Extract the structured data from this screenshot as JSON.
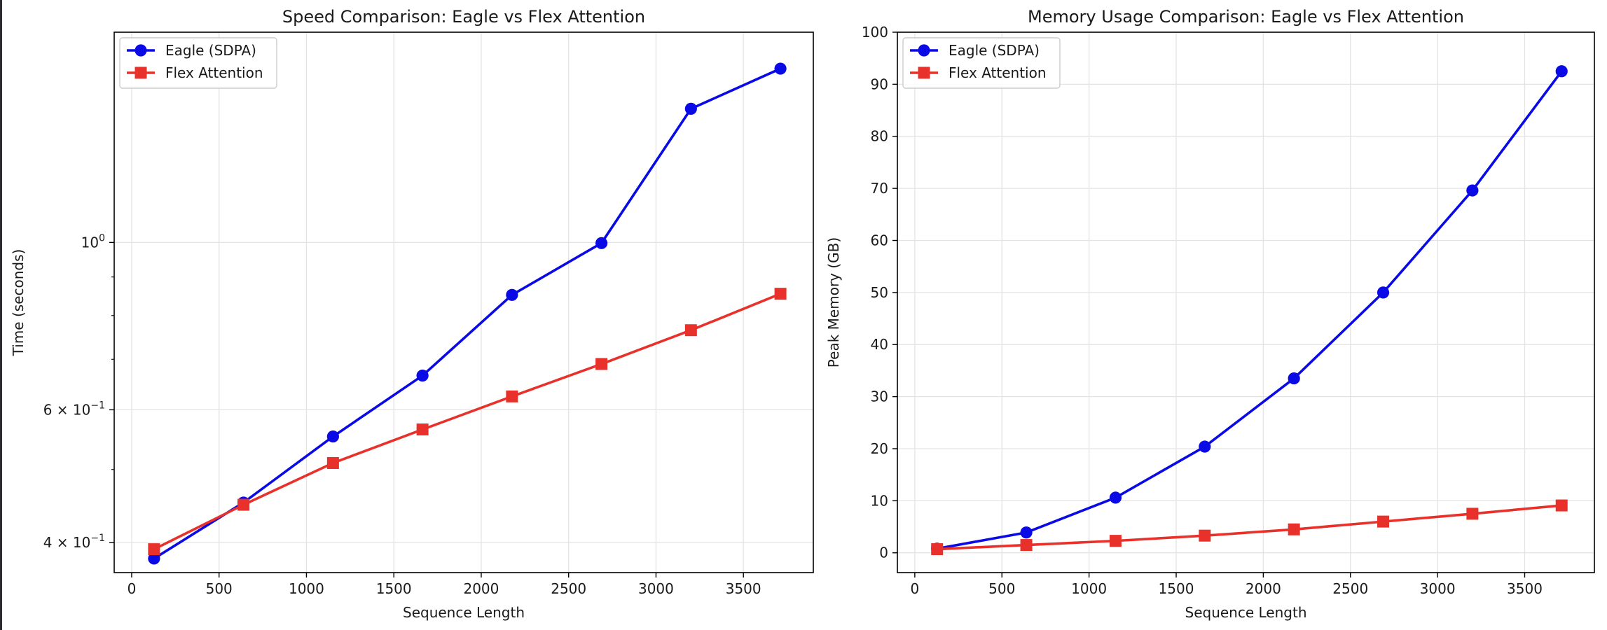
{
  "chart_data": [
    {
      "type": "line",
      "title": "Speed Comparison: Eagle vs Flex Attention",
      "xlabel": "Sequence Length",
      "ylabel": "Time (seconds)",
      "yscale": "log",
      "xlim": [
        -100,
        3900
      ],
      "ylim": [
        0.365,
        1.9
      ],
      "grid": true,
      "legend_position": "top-left",
      "x": [
        128,
        640,
        1152,
        1664,
        2176,
        2688,
        3200,
        3712
      ],
      "x_ticks": [
        0,
        500,
        1000,
        1500,
        2000,
        2500,
        3000,
        3500
      ],
      "x_tick_labels": [
        "0",
        "500",
        "1000",
        "1500",
        "2000",
        "2500",
        "3000",
        "3500"
      ],
      "y_ticks": [
        1.0,
        0.6,
        0.4
      ],
      "y_tick_labels": [
        {
          "base": "10",
          "exp": "0"
        },
        {
          "base": "6 × 10",
          "exp": "−1"
        },
        {
          "base": "4 × 10",
          "exp": "−1"
        }
      ],
      "y_minor_ticks": [
        0.5,
        0.7,
        0.8,
        0.9
      ],
      "series": [
        {
          "name": "Eagle (SDPA)",
          "color": "#0a0ae6",
          "marker": "circle",
          "values": [
            0.381,
            0.452,
            0.553,
            0.666,
            0.852,
            0.998,
            1.504,
            1.7
          ]
        },
        {
          "name": "Flex Attention",
          "color": "#e8312a",
          "marker": "square",
          "values": [
            0.392,
            0.449,
            0.51,
            0.565,
            0.625,
            0.69,
            0.765,
            0.855
          ]
        }
      ]
    },
    {
      "type": "line",
      "title": "Memory Usage Comparison: Eagle vs Flex Attention",
      "xlabel": "Sequence Length",
      "ylabel": "Peak Memory (GB)",
      "xlim": [
        -100,
        3900
      ],
      "ylim": [
        -3.8,
        100
      ],
      "grid": true,
      "legend_position": "top-left",
      "x": [
        128,
        640,
        1152,
        1664,
        2176,
        2688,
        3200,
        3712
      ],
      "x_ticks": [
        0,
        500,
        1000,
        1500,
        2000,
        2500,
        3000,
        3500
      ],
      "x_tick_labels": [
        "0",
        "500",
        "1000",
        "1500",
        "2000",
        "2500",
        "3000",
        "3500"
      ],
      "y_ticks": [
        0,
        10,
        20,
        30,
        40,
        50,
        60,
        70,
        80,
        90,
        100
      ],
      "y_tick_labels": [
        "0",
        "10",
        "20",
        "30",
        "40",
        "50",
        "60",
        "70",
        "80",
        "90",
        "100"
      ],
      "series": [
        {
          "name": "Eagle (SDPA)",
          "color": "#0a0ae6",
          "marker": "circle",
          "values": [
            0.8,
            3.9,
            10.6,
            20.4,
            33.5,
            50.0,
            69.6,
            92.5
          ]
        },
        {
          "name": "Flex Attention",
          "color": "#e8312a",
          "marker": "square",
          "values": [
            0.7,
            1.5,
            2.3,
            3.3,
            4.5,
            6.0,
            7.5,
            9.1
          ]
        }
      ]
    }
  ]
}
